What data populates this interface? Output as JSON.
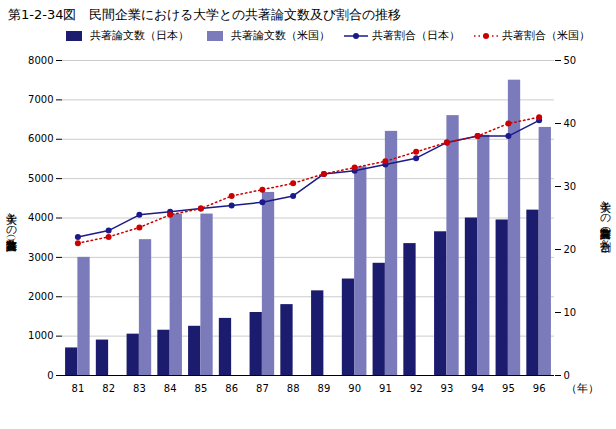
{
  "chart_data": {
    "type": "bar",
    "title": "第1-2-34図　民間企業における大学との共著論文数及び割合の推移",
    "categories": [
      "81",
      "82",
      "83",
      "84",
      "85",
      "86",
      "87",
      "88",
      "89",
      "90",
      "91",
      "92",
      "93",
      "94",
      "95",
      "96"
    ],
    "xlabel": "（年）",
    "ylabel": "大学との共著論文数（件数）",
    "y2label": "大学との共著論文数の割合（％）",
    "ylim": [
      0,
      8000
    ],
    "yticks": [
      0,
      1000,
      2000,
      3000,
      4000,
      5000,
      6000,
      7000,
      8000
    ],
    "y2lim": [
      0,
      50
    ],
    "y2ticks": [
      0,
      10,
      20,
      30,
      40,
      50
    ],
    "grid": true,
    "legend": "upper left",
    "series": [
      {
        "name": "共著論文数（日本）",
        "type": "bar",
        "color": "#1c1c6e",
        "values": [
          700,
          900,
          1050,
          1150,
          1250,
          1450,
          1600,
          1800,
          2150,
          2450,
          2850,
          3350,
          3650,
          4000,
          3950,
          4200
        ]
      },
      {
        "name": "共著論文数（米国）",
        "type": "bar",
        "color": "#7b7bbb",
        "values": [
          3000,
          0,
          3450,
          4100,
          4100,
          0,
          4650,
          0,
          0,
          5300,
          6200,
          0,
          6600,
          6100,
          7500,
          6300
        ]
      },
      {
        "name": "共著割合（日本）",
        "type": "line",
        "axis": "y2",
        "color": "#1a1a8a",
        "marker": "circle",
        "line_style": "solid",
        "values": [
          22.0,
          23.0,
          25.5,
          26.0,
          26.5,
          27.0,
          27.5,
          28.5,
          32.0,
          32.5,
          33.5,
          34.5,
          37.0,
          38.0,
          38.0,
          40.5
        ]
      },
      {
        "name": "共著割合（米国）",
        "type": "line",
        "axis": "y2",
        "color": "#cc0000",
        "marker": "circle",
        "line_style": "dotted",
        "values": [
          21.0,
          22.0,
          23.5,
          25.5,
          26.5,
          28.5,
          29.5,
          30.5,
          32.0,
          33.0,
          34.0,
          35.5,
          37.0,
          38.0,
          40.0,
          41.0
        ]
      }
    ]
  }
}
